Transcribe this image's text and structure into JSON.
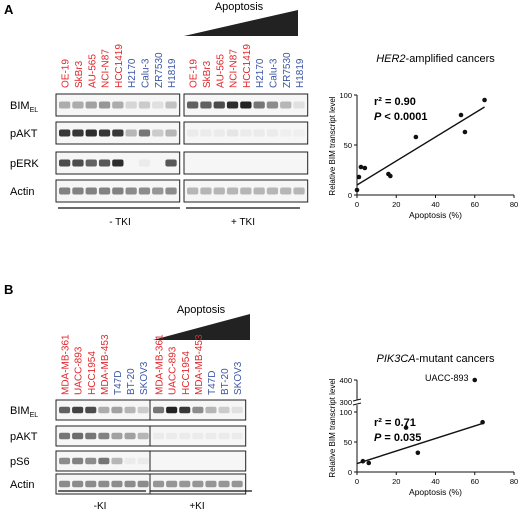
{
  "colors": {
    "red": "#e0262b",
    "blue": "#3a55a4",
    "band": "#222222"
  },
  "panel_a": {
    "letter": "A",
    "apoptosis_label": "Apoptosis",
    "lanes_red": [
      "OE-19",
      "SkBr3",
      "AU-565",
      "NCI-N87",
      "HCC1419"
    ],
    "lanes_blue": [
      "H2170",
      "Calu-3",
      "ZR7530",
      "H1819"
    ],
    "blot_rows": [
      "BIM",
      "pAKT",
      "pERK",
      "Actin"
    ],
    "bim_subscript": "EL",
    "groups": [
      "- TKI",
      "+ TKI"
    ],
    "blot_intensity": {
      "BIM": [
        [
          0.35,
          0.35,
          0.4,
          0.45,
          0.35,
          0.15,
          0.2,
          0.1,
          0.25
        ],
        [
          0.7,
          0.7,
          0.8,
          0.95,
          1.0,
          0.6,
          0.5,
          0.3,
          0.1
        ]
      ],
      "pAKT": [
        [
          0.9,
          0.9,
          0.95,
          0.9,
          0.9,
          0.3,
          0.6,
          0.2,
          0.3
        ],
        [
          0.05,
          0.05,
          0.05,
          0.08,
          0.05,
          0.05,
          0.05,
          0.03,
          0.03
        ]
      ],
      "pERK": [
        [
          0.8,
          0.8,
          0.7,
          0.75,
          0.95,
          0.0,
          0.05,
          0.0,
          0.75
        ],
        [
          0.0,
          0.0,
          0.0,
          0.0,
          0.0,
          0.0,
          0.0,
          0.0,
          0.0
        ]
      ],
      "Actin": [
        [
          0.55,
          0.55,
          0.55,
          0.55,
          0.55,
          0.5,
          0.5,
          0.45,
          0.5
        ],
        [
          0.3,
          0.3,
          0.3,
          0.3,
          0.3,
          0.3,
          0.3,
          0.3,
          0.3
        ]
      ]
    }
  },
  "panel_b": {
    "letter": "B",
    "apoptosis_label": "Apoptosis",
    "lanes_red": [
      "MDA-MB-361",
      "UACC-893",
      "HCC1954",
      "MDA-MB-453"
    ],
    "lanes_blue": [
      "T47D",
      "BT-20",
      "SKOV3"
    ],
    "blot_rows": [
      "BIM",
      "pAKT",
      "pS6",
      "Actin"
    ],
    "bim_subscript": "EL",
    "groups": [
      "-KI",
      "+KI"
    ],
    "blot_intensity": {
      "BIM": [
        [
          0.7,
          0.85,
          0.8,
          0.35,
          0.4,
          0.3,
          0.2
        ],
        [
          0.6,
          1.0,
          0.9,
          0.5,
          0.3,
          0.2,
          0.1
        ]
      ],
      "pAKT": [
        [
          0.6,
          0.65,
          0.6,
          0.55,
          0.4,
          0.4,
          0.3
        ],
        [
          0.05,
          0.05,
          0.05,
          0.05,
          0.05,
          0.05,
          0.05
        ]
      ],
      "pS6": [
        [
          0.5,
          0.55,
          0.5,
          0.6,
          0.3,
          0.05,
          0.05
        ],
        [
          0.0,
          0.0,
          0.0,
          0.0,
          0.0,
          0.0,
          0.0
        ]
      ],
      "Actin": [
        [
          0.5,
          0.5,
          0.5,
          0.5,
          0.5,
          0.5,
          0.5
        ],
        [
          0.45,
          0.45,
          0.45,
          0.45,
          0.45,
          0.45,
          0.45
        ]
      ]
    }
  },
  "chart_data": [
    {
      "type": "scatter",
      "title_italic": "HER2",
      "title_rest": "-amplified cancers",
      "xlabel": "Apoptosis (%)",
      "ylabel": "Relative BIM transcript level",
      "xlim": [
        0,
        80
      ],
      "ylim": [
        0,
        100
      ],
      "xticks": [
        0,
        20,
        40,
        60,
        80
      ],
      "yticks": [
        0,
        50,
        100
      ],
      "stats": {
        "r2": "r² = 0.90",
        "p_italic": "P",
        "p_rest": " < 0.0001"
      },
      "points": [
        [
          0,
          5
        ],
        [
          1,
          18
        ],
        [
          2,
          28
        ],
        [
          4,
          27
        ],
        [
          16,
          21
        ],
        [
          17,
          19
        ],
        [
          30,
          58
        ],
        [
          53,
          80
        ],
        [
          55,
          63
        ],
        [
          65,
          95
        ]
      ],
      "fit": [
        [
          0,
          10
        ],
        [
          65,
          88
        ]
      ]
    },
    {
      "type": "scatter",
      "title_italic": "PIK3CA",
      "title_rest": "-mutant cancers",
      "xlabel": "Apoptosis (%)",
      "ylabel": "Relative BIM transcript level",
      "xlim": [
        0,
        80
      ],
      "ylim": [
        0,
        100
      ],
      "broken_axis_upper_ticks": [
        300,
        400
      ],
      "xticks": [
        0,
        20,
        40,
        60,
        80
      ],
      "yticks": [
        0,
        50,
        100
      ],
      "stats": {
        "r2": "r² = 0.71",
        "p_italic": "P",
        "p_rest": " = 0.035"
      },
      "annotation": "UACC-893",
      "points": [
        [
          3,
          18
        ],
        [
          6,
          15
        ],
        [
          25,
          74
        ],
        [
          31,
          32
        ],
        [
          64,
          83
        ]
      ],
      "upper_points": [
        [
          60,
          400
        ]
      ],
      "fit": [
        [
          0,
          14
        ],
        [
          64,
          81
        ]
      ]
    }
  ]
}
